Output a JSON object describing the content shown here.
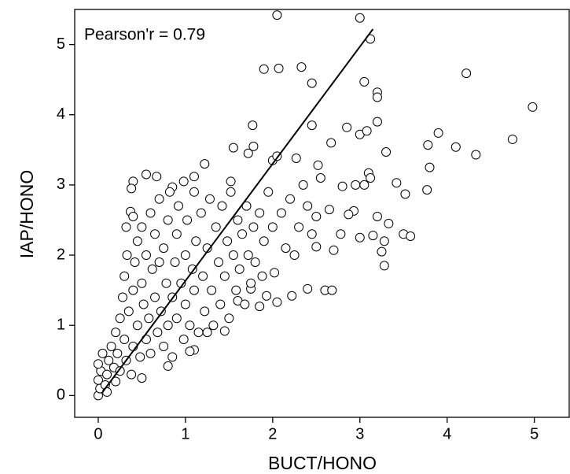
{
  "chart_data": {
    "type": "scatter",
    "annotation": "Pearson'r = 0.79",
    "x_label": "BUCT/HONO",
    "y_label": "IAP/HONO",
    "xlim": [
      -0.27,
      5.4
    ],
    "ylim": [
      -0.31,
      5.5
    ],
    "xticks": [
      0,
      1,
      2,
      3,
      4,
      5
    ],
    "yticks": [
      0,
      1,
      2,
      3,
      4,
      5
    ],
    "marker_color": "#000000",
    "x": [
      2.05,
      3.0,
      3.12,
      1.9,
      2.07,
      2.33,
      2.45,
      4.22,
      3.05,
      3.2,
      3.2,
      4.98,
      1.77,
      2.45,
      2.85,
      3.0,
      3.08,
      3.2,
      3.9,
      4.75,
      3.3,
      4.1,
      4.33,
      3.78,
      3.8,
      3.42,
      3.52,
      3.77,
      3.1,
      3.12,
      2.0,
      2.05,
      2.27,
      2.52,
      2.67,
      2.95,
      3.05,
      2.8,
      3.2,
      3.33,
      3.5,
      3.58,
      3.28,
      3.25,
      3.28,
      3.0,
      3.15,
      2.93,
      2.87,
      2.5,
      2.78,
      2.7,
      2.6,
      2.68,
      2.4,
      2.22,
      2.05,
      1.85,
      1.93,
      1.75,
      1.6,
      1.45,
      1.25,
      1.1,
      1.05,
      0.8,
      0.5,
      0.4,
      0.38,
      0.55,
      0.67,
      0.85,
      0.98,
      1.1,
      1.22,
      1.52,
      1.72,
      1.78,
      1.55,
      0.37,
      0.4,
      0.32,
      0.0,
      0.02,
      0.0,
      0.03,
      0.0,
      0.05,
      0.08,
      0.1,
      0.12,
      0.1,
      0.15,
      0.18,
      0.2,
      0.2,
      0.22,
      0.25,
      0.25,
      0.28,
      0.3,
      0.3,
      0.32,
      0.33,
      0.35,
      0.38,
      0.4,
      0.4,
      0.42,
      0.45,
      0.45,
      0.48,
      0.5,
      0.5,
      0.52,
      0.55,
      0.55,
      0.58,
      0.6,
      0.6,
      0.62,
      0.65,
      0.65,
      0.68,
      0.7,
      0.7,
      0.72,
      0.75,
      0.75,
      0.78,
      0.8,
      0.8,
      0.82,
      0.85,
      0.85,
      0.88,
      0.9,
      0.9,
      0.92,
      0.95,
      0.98,
      1.0,
      1.0,
      1.02,
      1.05,
      1.08,
      1.1,
      1.1,
      1.12,
      1.15,
      1.18,
      1.2,
      1.22,
      1.25,
      1.28,
      1.3,
      1.32,
      1.35,
      1.38,
      1.4,
      1.42,
      1.45,
      1.48,
      1.5,
      1.52,
      1.55,
      1.58,
      1.6,
      1.62,
      1.65,
      1.68,
      1.7,
      1.72,
      1.75,
      1.78,
      1.8,
      1.85,
      1.88,
      1.9,
      1.95,
      2.0,
      2.02,
      2.1,
      2.15,
      2.2,
      2.25,
      2.3,
      2.35,
      2.4,
      2.45,
      2.5,
      2.55,
      2.65
    ],
    "values": [
      5.42,
      5.38,
      5.08,
      4.65,
      4.66,
      4.68,
      4.45,
      4.59,
      4.47,
      4.32,
      4.25,
      4.11,
      3.85,
      3.85,
      3.82,
      3.72,
      3.77,
      3.9,
      3.74,
      3.65,
      3.47,
      3.54,
      3.43,
      3.57,
      3.25,
      3.03,
      2.87,
      2.93,
      3.17,
      3.1,
      3.35,
      3.41,
      3.38,
      3.28,
      3.6,
      3.0,
      3.0,
      2.98,
      2.55,
      2.45,
      2.3,
      2.27,
      2.2,
      2.05,
      1.85,
      2.25,
      2.28,
      2.63,
      2.58,
      2.12,
      2.3,
      2.07,
      1.5,
      1.5,
      1.52,
      1.42,
      1.33,
      1.27,
      1.42,
      1.52,
      1.35,
      0.92,
      0.9,
      0.65,
      0.63,
      0.42,
      0.25,
      3.05,
      2.95,
      3.15,
      3.12,
      2.97,
      3.05,
      3.12,
      3.3,
      3.05,
      3.45,
      3.55,
      3.53,
      2.62,
      2.55,
      2.4,
      0.0,
      0.1,
      0.22,
      0.35,
      0.45,
      0.6,
      0.15,
      0.3,
      0.5,
      0.05,
      0.7,
      0.4,
      0.9,
      0.2,
      0.6,
      1.1,
      0.35,
      1.4,
      0.8,
      1.7,
      0.5,
      2.0,
      1.2,
      0.3,
      1.5,
      0.7,
      1.9,
      1.0,
      2.2,
      0.55,
      1.6,
      2.4,
      1.3,
      0.8,
      2.0,
      1.1,
      2.6,
      0.6,
      1.8,
      1.4,
      2.3,
      0.9,
      1.9,
      2.8,
      1.2,
      0.7,
      2.1,
      1.6,
      2.5,
      1.0,
      2.9,
      1.4,
      0.55,
      1.9,
      2.3,
      1.1,
      2.7,
      1.6,
      0.8,
      2.0,
      1.3,
      2.5,
      1.0,
      1.8,
      2.9,
      1.5,
      2.2,
      0.9,
      2.6,
      1.7,
      1.2,
      2.1,
      2.8,
      1.5,
      1.0,
      2.4,
      1.9,
      1.3,
      2.7,
      1.7,
      2.2,
      1.1,
      2.9,
      2.0,
      1.5,
      2.5,
      1.8,
      2.3,
      1.3,
      2.7,
      2.0,
      1.6,
      2.4,
      1.9,
      2.6,
      1.7,
      2.2,
      2.9,
      2.4,
      1.75,
      2.6,
      2.1,
      2.8,
      2.0,
      2.4,
      3.0,
      2.7,
      2.3,
      2.55,
      3.1,
      2.65
    ],
    "fit_line": {
      "color": "#000000",
      "x": [
        0.05,
        3.15
      ],
      "values": [
        0.05,
        5.22
      ]
    }
  }
}
